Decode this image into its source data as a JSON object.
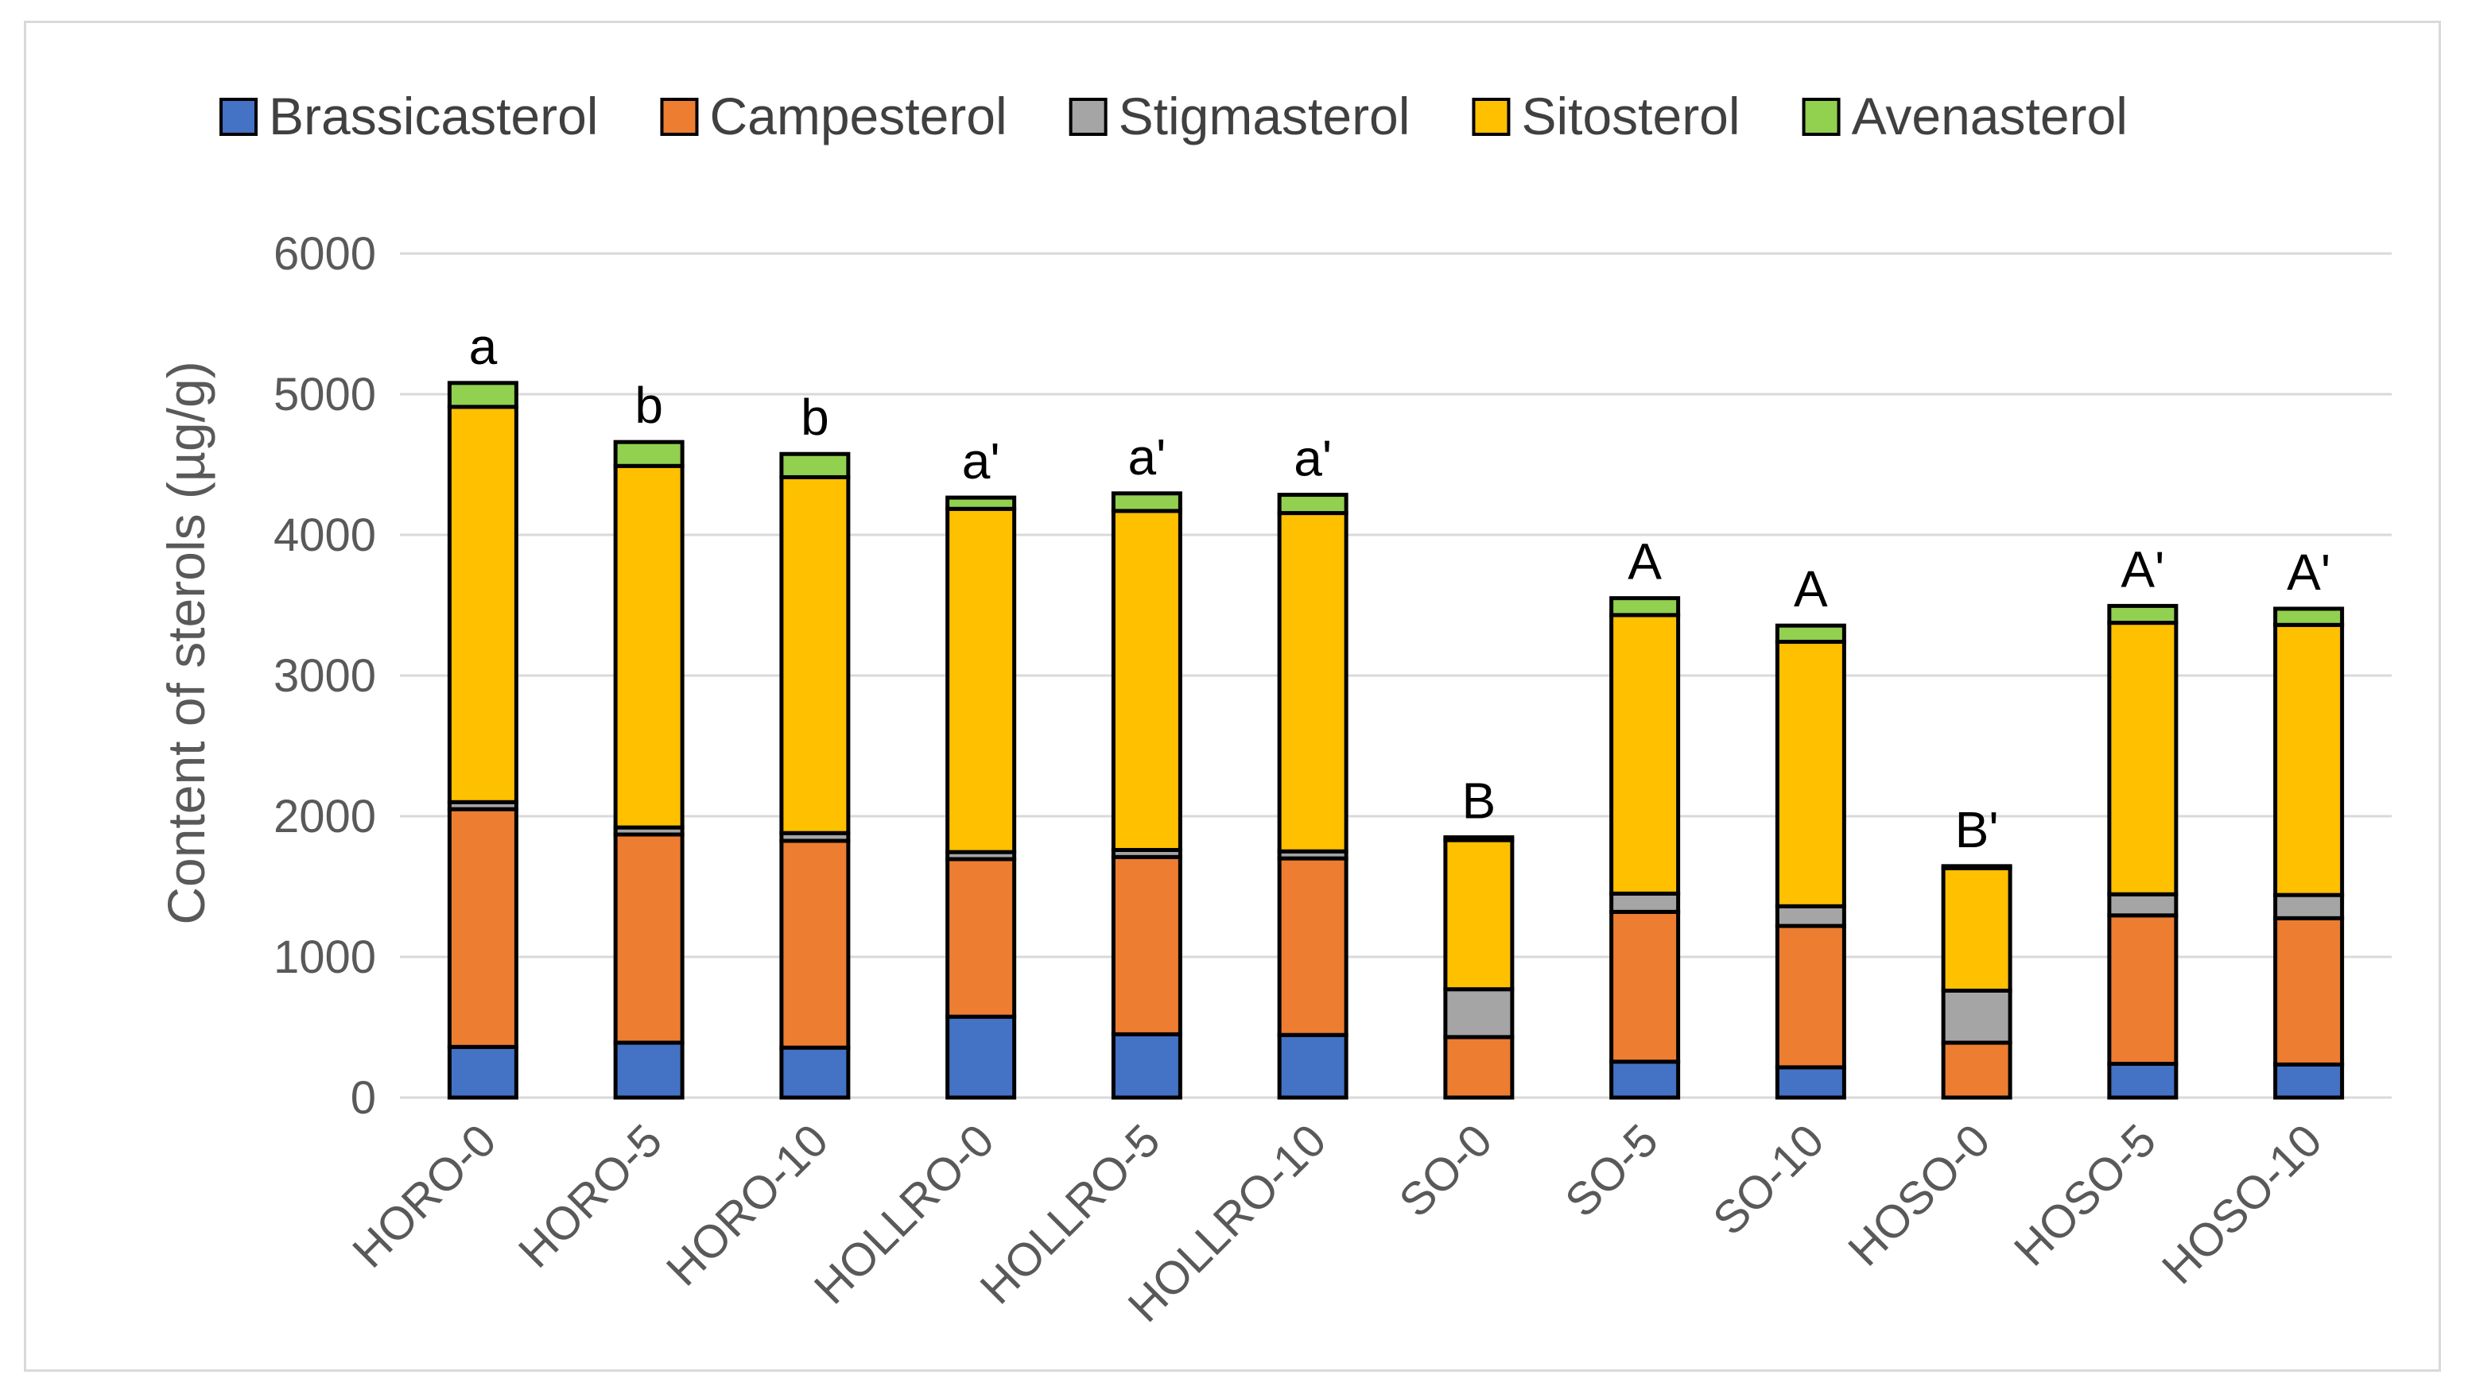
{
  "chart_data": {
    "type": "bar",
    "stacked": true,
    "title": "",
    "xlabel": "",
    "ylabel": "Content of sterols (µg/g)",
    "ylim": [
      0,
      6000
    ],
    "yticks": [
      "0",
      "1000",
      "2000",
      "3000",
      "4000",
      "5000",
      "6000"
    ],
    "grid": true,
    "legend_position": "top",
    "categories": [
      "HORO-0",
      "HORO-5",
      "HORO-10",
      "HOLLRO-0",
      "HOLLRO-5",
      "HOLLRO-10",
      "SO-0",
      "SO-5",
      "SO-10",
      "HOSO-0",
      "HOSO-5",
      "HOSO-10"
    ],
    "series": [
      {
        "name": "Brassicasterol",
        "color": "#4472C4",
        "values": [
          360,
          390,
          355,
          575,
          450,
          445,
          0,
          255,
          215,
          0,
          240,
          235
        ]
      },
      {
        "name": "Campesterol",
        "color": "#ED7D31",
        "values": [
          1690,
          1480,
          1470,
          1120,
          1260,
          1255,
          430,
          1065,
          1005,
          390,
          1055,
          1040
        ]
      },
      {
        "name": "Stigmasterol",
        "color": "#A5A5A5",
        "values": [
          50,
          50,
          55,
          50,
          50,
          50,
          340,
          130,
          140,
          370,
          150,
          165
        ]
      },
      {
        "name": "Sitosterol",
        "color": "#FFC000",
        "values": [
          2810,
          2570,
          2530,
          2440,
          2410,
          2405,
          1060,
          1980,
          1880,
          870,
          1930,
          1920
        ]
      },
      {
        "name": "Avenasterol",
        "color": "#92D050",
        "values": [
          170,
          170,
          165,
          80,
          125,
          130,
          20,
          120,
          115,
          15,
          120,
          115
        ]
      }
    ],
    "annotations": [
      "a",
      "b",
      "b",
      "a'",
      "a'",
      "a'",
      "B",
      "A",
      "A",
      "B'",
      "A'",
      "A'"
    ]
  }
}
